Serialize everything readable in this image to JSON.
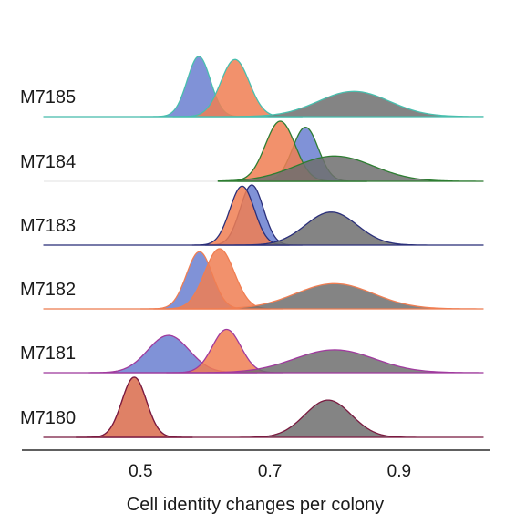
{
  "chart_data": {
    "type": "ridgeline",
    "xlabel": "Cell identity changes per colony",
    "xlim": [
      0.35,
      1.03
    ],
    "xticks": [
      0.5,
      0.7,
      0.9
    ],
    "xtick_labels": [
      "0.5",
      "0.7",
      "0.9"
    ],
    "grid": false,
    "legend": "none",
    "colors": {
      "blue": "#6a7fd0",
      "orange": "#f07e52",
      "gray": "#6f6f6f",
      "baseline": "#e6e6e6",
      "axis": "#000000"
    },
    "rows": [
      {
        "label": "M7185",
        "outline": "#48bfae",
        "curves": [
          {
            "fill": "#6a7fd0",
            "mu": 0.59,
            "sigma": 0.018,
            "peak": 1.0,
            "range": [
              0.5,
              0.75
            ]
          },
          {
            "fill": "#f07e52",
            "mu": 0.646,
            "sigma": 0.022,
            "peak": 0.95,
            "range": [
              0.55,
              0.75
            ]
          },
          {
            "fill": "#6f6f6f",
            "mu": 0.83,
            "sigma": 0.055,
            "peak": 0.42,
            "range": [
              0.35,
              1.03
            ]
          }
        ]
      },
      {
        "label": "M7184",
        "outline": "#2e7d32",
        "curves": [
          {
            "fill": "#6a7fd0",
            "mu": 0.755,
            "sigma": 0.02,
            "peak": 0.9,
            "range": [
              0.65,
              0.85
            ]
          },
          {
            "fill": "#f07e52",
            "mu": 0.716,
            "sigma": 0.023,
            "peak": 1.0,
            "range": [
              0.62,
              0.85
            ]
          },
          {
            "fill": "#6f6f6f",
            "mu": 0.8,
            "sigma": 0.06,
            "peak": 0.42,
            "range": [
              0.62,
              1.03
            ]
          }
        ]
      },
      {
        "label": "M7183",
        "outline": "#2a2f7a",
        "curves": [
          {
            "fill": "#6a7fd0",
            "mu": 0.672,
            "sigma": 0.018,
            "peak": 1.0,
            "range": [
              0.6,
              0.75
            ]
          },
          {
            "fill": "#f07e52",
            "mu": 0.657,
            "sigma": 0.019,
            "peak": 0.98,
            "range": [
              0.58,
              0.73
            ]
          },
          {
            "fill": "#6f6f6f",
            "mu": 0.795,
            "sigma": 0.04,
            "peak": 0.55,
            "range": [
              0.35,
              1.03
            ]
          }
        ]
      },
      {
        "label": "M7182",
        "outline": "#f07e52",
        "curves": [
          {
            "fill": "#6a7fd0",
            "mu": 0.591,
            "sigma": 0.02,
            "peak": 0.95,
            "range": [
              0.5,
              0.7
            ]
          },
          {
            "fill": "#f07e52",
            "mu": 0.622,
            "sigma": 0.023,
            "peak": 1.0,
            "range": [
              0.52,
              0.72
            ]
          },
          {
            "fill": "#6f6f6f",
            "mu": 0.8,
            "sigma": 0.06,
            "peak": 0.42,
            "range": [
              0.35,
              1.03
            ]
          }
        ]
      },
      {
        "label": "M7181",
        "outline": "#a03a9e",
        "curves": [
          {
            "fill": "#6a7fd0",
            "mu": 0.543,
            "sigma": 0.032,
            "peak": 0.62,
            "range": [
              0.42,
              0.68
            ]
          },
          {
            "fill": "#f07e52",
            "mu": 0.633,
            "sigma": 0.022,
            "peak": 0.72,
            "range": [
              0.54,
              0.72
            ]
          },
          {
            "fill": "#6f6f6f",
            "mu": 0.8,
            "sigma": 0.062,
            "peak": 0.38,
            "range": [
              0.35,
              1.03
            ]
          }
        ]
      },
      {
        "label": "M7180",
        "outline": "#7a1a40",
        "curves": [
          {
            "fill": "#6a7fd0",
            "mu": 0.49,
            "sigma": 0.019,
            "peak": 1.0,
            "range": [
              0.4,
              0.58
            ]
          },
          {
            "fill": "#f07e52",
            "mu": 0.49,
            "sigma": 0.019,
            "peak": 1.0,
            "range": [
              0.4,
              0.58
            ]
          },
          {
            "fill": "#6f6f6f",
            "mu": 0.79,
            "sigma": 0.036,
            "peak": 0.62,
            "range": [
              0.35,
              1.03
            ]
          }
        ]
      }
    ]
  }
}
